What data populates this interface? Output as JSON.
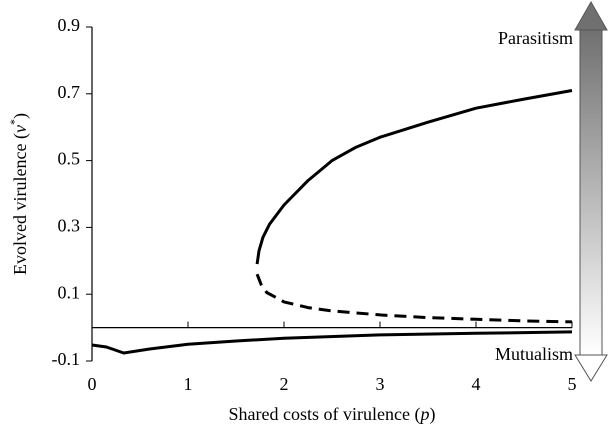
{
  "chart_data": {
    "type": "line",
    "xlabel": [
      "Shared costs of virulence (",
      "p",
      ")"
    ],
    "ylabel": [
      "Evolved virulence (",
      "v",
      "*",
      ")"
    ],
    "annotations": [
      "Parasitism",
      "Mutualism"
    ],
    "xlim": [
      0,
      5
    ],
    "xticks": [
      0,
      1,
      2,
      3,
      4,
      5
    ],
    "ylim": [
      -0.1,
      0.9
    ],
    "yticks": [
      -0.1,
      0.1,
      0.3,
      0.5,
      0.7,
      0.9
    ],
    "series": [
      {
        "color": "#000000",
        "style": "solid",
        "x": [
          1.72,
          1.74,
          1.78,
          1.85,
          2,
          2.25,
          2.5,
          2.75,
          3,
          3.5,
          4,
          4.5,
          5
        ],
        "values": [
          0.19,
          0.23,
          0.27,
          0.31,
          0.367,
          0.44,
          0.5,
          0.54,
          0.57,
          0.615,
          0.657,
          0.684,
          0.71
        ]
      },
      {
        "color": "#000000",
        "style": "dashed",
        "x": [
          1.72,
          1.76,
          1.82,
          2,
          2.25,
          2.5,
          3,
          3.5,
          4,
          4.5,
          5
        ],
        "values": [
          0.16,
          0.13,
          0.105,
          0.077,
          0.06,
          0.05,
          0.038,
          0.03,
          0.025,
          0.02,
          0.017
        ]
      },
      {
        "color": "#000000",
        "style": "solid",
        "x": [
          0,
          0.15,
          0.33,
          0.6,
          1,
          1.5,
          2,
          3,
          4,
          5
        ],
        "values": [
          -0.052,
          -0.058,
          -0.076,
          -0.064,
          -0.05,
          -0.04,
          -0.032,
          -0.022,
          -0.017,
          -0.013
        ]
      }
    ]
  }
}
